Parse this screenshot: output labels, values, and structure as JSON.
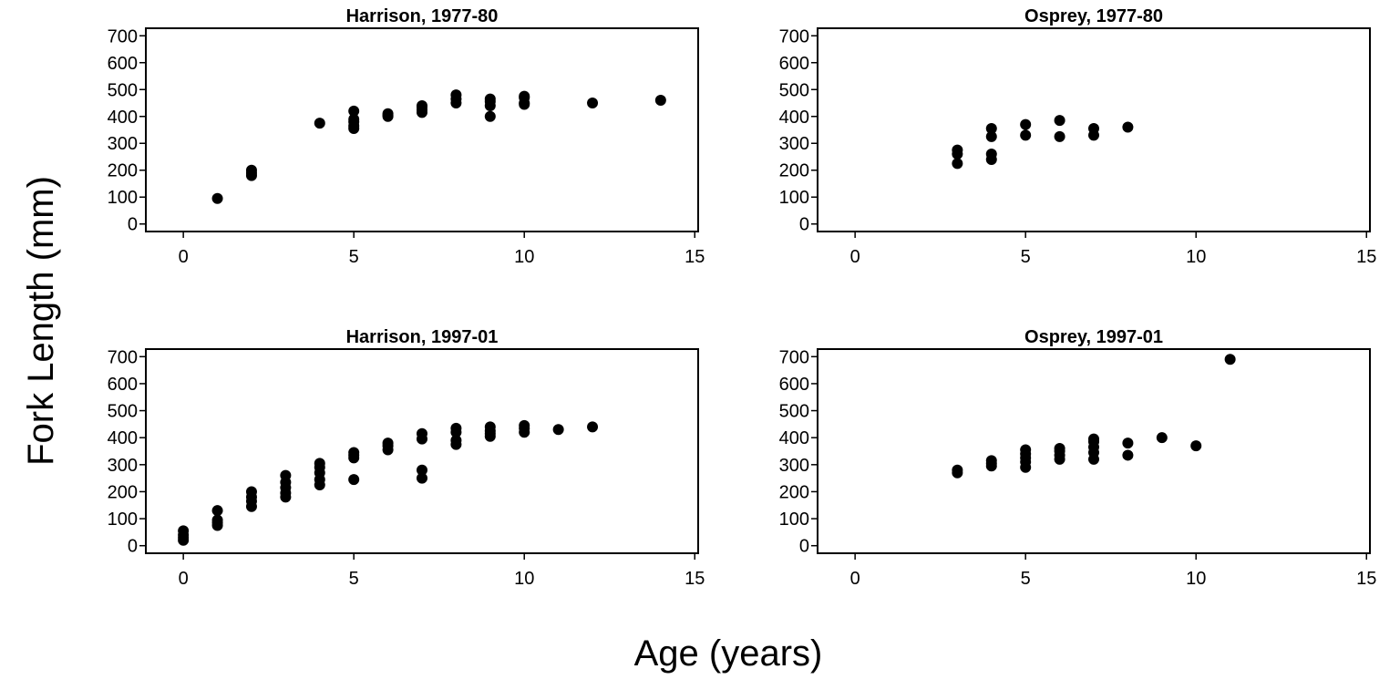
{
  "figure": {
    "ylabel": "Fork Length (mm)",
    "xlabel": "Age (years)"
  },
  "chart_data": [
    {
      "type": "scatter",
      "title": "Harrison, 1977-80",
      "xlim": [
        -1.1,
        15.1
      ],
      "ylim": [
        -28,
        728
      ],
      "xticks": [
        0,
        5,
        10,
        15
      ],
      "yticks": [
        0,
        100,
        200,
        300,
        400,
        500,
        600,
        700
      ],
      "grid": false,
      "points": [
        [
          1,
          95
        ],
        [
          2,
          180
        ],
        [
          2,
          190
        ],
        [
          2,
          200
        ],
        [
          4,
          375
        ],
        [
          5,
          355
        ],
        [
          5,
          365
        ],
        [
          5,
          380
        ],
        [
          5,
          390
        ],
        [
          5,
          420
        ],
        [
          6,
          400
        ],
        [
          6,
          405
        ],
        [
          6,
          410
        ],
        [
          7,
          415
        ],
        [
          7,
          425
        ],
        [
          7,
          435
        ],
        [
          7,
          440
        ],
        [
          8,
          450
        ],
        [
          8,
          465
        ],
        [
          8,
          480
        ],
        [
          9,
          400
        ],
        [
          9,
          440
        ],
        [
          9,
          455
        ],
        [
          9,
          465
        ],
        [
          10,
          445
        ],
        [
          10,
          450
        ],
        [
          10,
          470
        ],
        [
          10,
          475
        ],
        [
          12,
          450
        ],
        [
          14,
          460
        ]
      ]
    },
    {
      "type": "scatter",
      "title": "Osprey, 1977-80",
      "xlim": [
        -1.1,
        15.1
      ],
      "ylim": [
        -28,
        728
      ],
      "xticks": [
        0,
        5,
        10,
        15
      ],
      "yticks": [
        0,
        100,
        200,
        300,
        400,
        500,
        600,
        700
      ],
      "grid": false,
      "points": [
        [
          3,
          225
        ],
        [
          3,
          260
        ],
        [
          3,
          275
        ],
        [
          4,
          240
        ],
        [
          4,
          260
        ],
        [
          4,
          325
        ],
        [
          4,
          355
        ],
        [
          5,
          330
        ],
        [
          5,
          370
        ],
        [
          6,
          325
        ],
        [
          6,
          385
        ],
        [
          7,
          330
        ],
        [
          7,
          355
        ],
        [
          8,
          360
        ]
      ]
    },
    {
      "type": "scatter",
      "title": "Harrison, 1997-01",
      "xlim": [
        -1.1,
        15.1
      ],
      "ylim": [
        -28,
        728
      ],
      "xticks": [
        0,
        5,
        10,
        15
      ],
      "yticks": [
        0,
        100,
        200,
        300,
        400,
        500,
        600,
        700
      ],
      "grid": false,
      "points": [
        [
          0,
          20
        ],
        [
          0,
          30
        ],
        [
          0,
          40
        ],
        [
          0,
          55
        ],
        [
          1,
          75
        ],
        [
          1,
          85
        ],
        [
          1,
          95
        ],
        [
          1,
          130
        ],
        [
          2,
          145
        ],
        [
          2,
          165
        ],
        [
          2,
          180
        ],
        [
          2,
          200
        ],
        [
          3,
          180
        ],
        [
          3,
          195
        ],
        [
          3,
          215
        ],
        [
          3,
          235
        ],
        [
          3,
          260
        ],
        [
          4,
          225
        ],
        [
          4,
          245
        ],
        [
          4,
          270
        ],
        [
          4,
          290
        ],
        [
          4,
          305
        ],
        [
          5,
          245
        ],
        [
          5,
          325
        ],
        [
          5,
          335
        ],
        [
          5,
          345
        ],
        [
          6,
          355
        ],
        [
          6,
          370
        ],
        [
          6,
          380
        ],
        [
          7,
          250
        ],
        [
          7,
          280
        ],
        [
          7,
          395
        ],
        [
          7,
          415
        ],
        [
          8,
          375
        ],
        [
          8,
          390
        ],
        [
          8,
          420
        ],
        [
          8,
          435
        ],
        [
          9,
          405
        ],
        [
          9,
          415
        ],
        [
          9,
          425
        ],
        [
          9,
          440
        ],
        [
          10,
          420
        ],
        [
          10,
          435
        ],
        [
          10,
          445
        ],
        [
          11,
          430
        ],
        [
          12,
          440
        ]
      ]
    },
    {
      "type": "scatter",
      "title": "Osprey, 1997-01",
      "xlim": [
        -1.1,
        15.1
      ],
      "ylim": [
        -28,
        728
      ],
      "xticks": [
        0,
        5,
        10,
        15
      ],
      "yticks": [
        0,
        100,
        200,
        300,
        400,
        500,
        600,
        700
      ],
      "grid": false,
      "points": [
        [
          3,
          270
        ],
        [
          3,
          280
        ],
        [
          4,
          295
        ],
        [
          4,
          305
        ],
        [
          4,
          315
        ],
        [
          5,
          290
        ],
        [
          5,
          310
        ],
        [
          5,
          325
        ],
        [
          5,
          340
        ],
        [
          5,
          355
        ],
        [
          6,
          320
        ],
        [
          6,
          335
        ],
        [
          6,
          350
        ],
        [
          6,
          360
        ],
        [
          7,
          320
        ],
        [
          7,
          345
        ],
        [
          7,
          365
        ],
        [
          7,
          385
        ],
        [
          7,
          395
        ],
        [
          8,
          335
        ],
        [
          8,
          380
        ],
        [
          9,
          400
        ],
        [
          10,
          370
        ],
        [
          11,
          690
        ]
      ]
    }
  ]
}
